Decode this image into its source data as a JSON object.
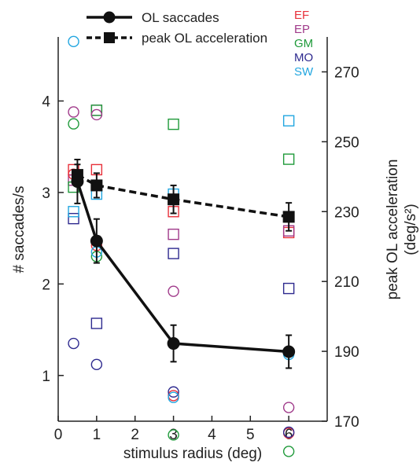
{
  "chart_data": {
    "type": "scatter",
    "xlabel": "stimulus radius (deg)",
    "ylabel_left": "# saccades/s",
    "ylabel_right_line1": "peak OL acceleration",
    "ylabel_right_line2": "(deg/s²)",
    "xlim": [
      0,
      7
    ],
    "ylim_left": [
      0.5,
      4.7
    ],
    "ylim_right": [
      170,
      280
    ],
    "x_ticks": [
      0,
      1,
      2,
      3,
      4,
      5,
      6
    ],
    "y_left_ticks": [
      1,
      2,
      3,
      4
    ],
    "y_right_ticks": [
      170,
      190,
      210,
      230,
      250,
      270
    ],
    "grid": false,
    "legend": {
      "position": "top-left",
      "entries": [
        {
          "name": "OL saccades",
          "style": "solid",
          "marker": "circle"
        },
        {
          "name": "peak OL acceleration",
          "style": "dashed",
          "marker": "square"
        }
      ]
    },
    "subjects": [
      {
        "name": "EF",
        "color": "#e8303a"
      },
      {
        "name": "EP",
        "color": "#a03a8a"
      },
      {
        "name": "GM",
        "color": "#1f9a3a"
      },
      {
        "name": "MO",
        "color": "#2e2a8f"
      },
      {
        "name": "SW",
        "color": "#22a6e0"
      }
    ],
    "series": [
      {
        "name": "OL saccades",
        "axis": "left",
        "x": [
          0.5,
          1,
          3,
          6
        ],
        "y": [
          3.12,
          2.47,
          1.35,
          1.26
        ],
        "err": [
          0.24,
          0.24,
          0.2,
          0.18
        ]
      },
      {
        "name": "peak OL acceleration",
        "axis": "right",
        "x": [
          0.5,
          1,
          3,
          6
        ],
        "y": [
          240.5,
          237.5,
          233.5,
          228.5
        ],
        "err": [
          3,
          3.5,
          4,
          4
        ]
      }
    ],
    "subject_saccades": [
      {
        "subject": "EF",
        "x": [
          0.4,
          1,
          3,
          6
        ],
        "y": [
          3.2,
          2.42,
          0.78,
          0.37
        ]
      },
      {
        "subject": "EP",
        "x": [
          0.4,
          1,
          3,
          6
        ],
        "y": [
          3.88,
          3.85,
          1.92,
          0.65
        ]
      },
      {
        "subject": "GM",
        "x": [
          0.4,
          1,
          3,
          6
        ],
        "y": [
          3.75,
          2.3,
          0.35,
          0.17
        ]
      },
      {
        "subject": "MO",
        "x": [
          0.4,
          1,
          3,
          6
        ],
        "y": [
          1.35,
          1.12,
          0.82,
          0.38
        ]
      },
      {
        "subject": "SW",
        "x": [
          0.4,
          1,
          3,
          6
        ],
        "y": [
          4.65,
          2.35,
          0.76,
          1.23
        ]
      }
    ],
    "subject_acceleration": [
      {
        "subject": "EF",
        "x": [
          0.4,
          1,
          3,
          6
        ],
        "y": [
          242,
          242,
          230,
          224
        ]
      },
      {
        "subject": "EP",
        "x": [
          0.4,
          1,
          3,
          6
        ],
        "y": [
          239,
          259,
          223.5,
          224.5
        ]
      },
      {
        "subject": "GM",
        "x": [
          0.4,
          1,
          3,
          6
        ],
        "y": [
          237,
          259,
          255,
          245
        ]
      },
      {
        "subject": "MO",
        "x": [
          0.4,
          1,
          3,
          6
        ],
        "y": [
          228,
          198,
          218,
          208
        ]
      },
      {
        "subject": "SW",
        "x": [
          0.4,
          1,
          3,
          6
        ],
        "y": [
          230,
          235,
          235,
          256
        ]
      }
    ]
  }
}
